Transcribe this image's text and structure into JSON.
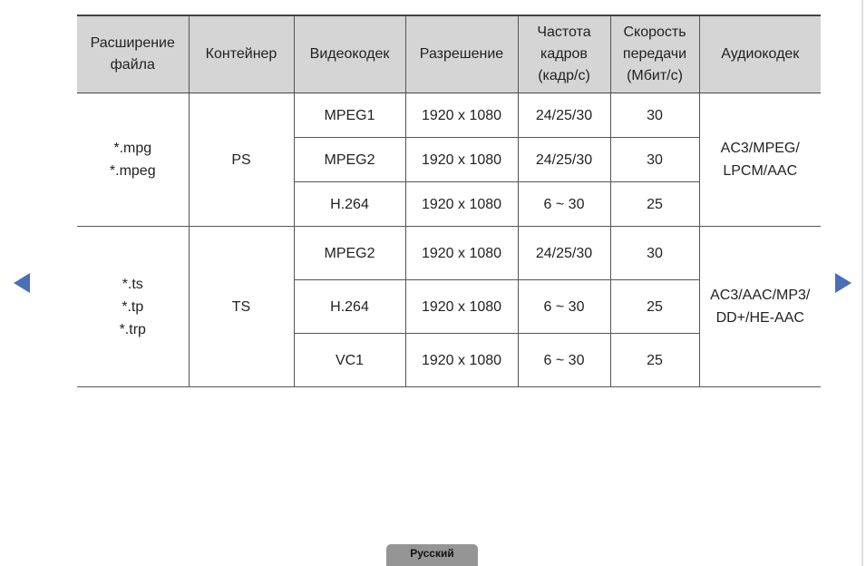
{
  "headers": [
    "Расширение файла",
    "Контейнер",
    "Видеокодек",
    "Разрешение",
    "Частота кадров (кадр/с)",
    "Скорость передачи (Мбит/с)",
    "Аудиокодек"
  ],
  "groups": [
    {
      "extensions": [
        "*.mpg",
        "*.mpeg"
      ],
      "container": "PS",
      "audio": [
        "AC3/MPEG/",
        "LPCM/AAC"
      ],
      "rows": [
        {
          "codec": "MPEG1",
          "resolution": "1920 x 1080",
          "fps": "24/25/30",
          "bitrate": "30"
        },
        {
          "codec": "MPEG2",
          "resolution": "1920 x 1080",
          "fps": "24/25/30",
          "bitrate": "30"
        },
        {
          "codec": "H.264",
          "resolution": "1920 x 1080",
          "fps": "6 ~ 30",
          "bitrate": "25"
        }
      ]
    },
    {
      "extensions": [
        "*.ts",
        "*.tp",
        "*.trp"
      ],
      "container": "TS",
      "audio": [
        "AC3/AAC/MP3/",
        "DD+/HE-AAC"
      ],
      "rows": [
        {
          "codec": "MPEG2",
          "resolution": "1920 x 1080",
          "fps": "24/25/30",
          "bitrate": "30"
        },
        {
          "codec": "H.264",
          "resolution": "1920 x 1080",
          "fps": "6 ~ 30",
          "bitrate": "25"
        },
        {
          "codec": "VC1",
          "resolution": "1920 x 1080",
          "fps": "6 ~ 30",
          "bitrate": "25"
        }
      ]
    }
  ],
  "nav": {
    "prev_icon": "triangle-left-icon",
    "next_icon": "triangle-right-icon",
    "accent": "#4a6fb5"
  },
  "language_tab": "Русский"
}
